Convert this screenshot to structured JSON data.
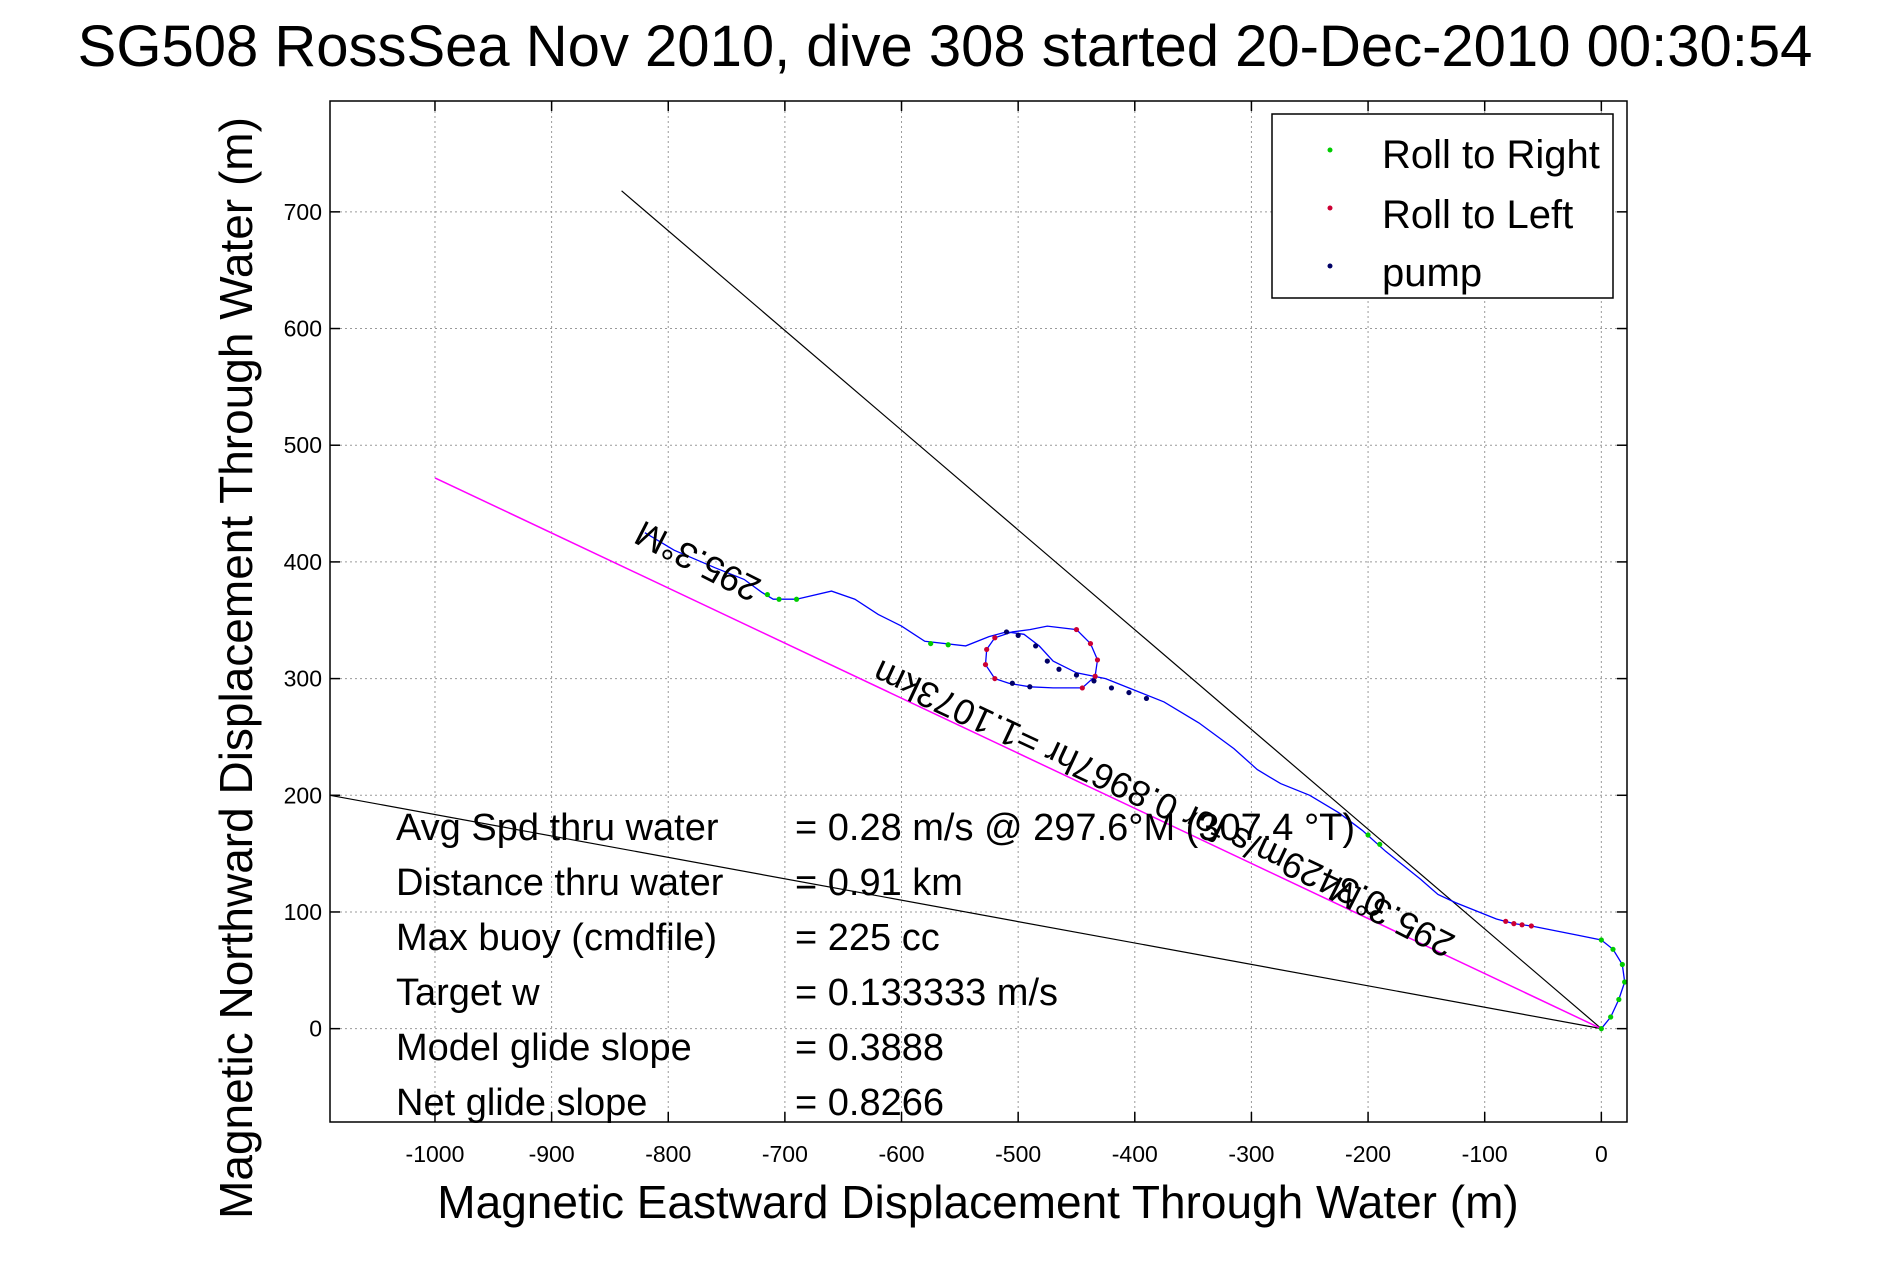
{
  "title": "SG508 RossSea Nov 2010, dive 308 started 20-Dec-2010 00:30:54",
  "chart_data": {
    "type": "scatter",
    "title": "SG508 RossSea Nov 2010, dive 308 started 20-Dec-2010 00:30:54",
    "xlabel": "Magnetic Eastward Displacement Through Water (m)",
    "ylabel": "Magnetic Northward Displacement Through Water (m)",
    "xlim": [
      -1090,
      22
    ],
    "ylim": [
      -80,
      795
    ],
    "grid": true,
    "legend_position": "top-right",
    "xticks": [
      -1000,
      -900,
      -800,
      -700,
      -600,
      -500,
      -400,
      -300,
      -200,
      -100,
      0
    ],
    "yticks": [
      0,
      100,
      200,
      300,
      400,
      500,
      600,
      700
    ],
    "xtick_labels": [
      "-1000",
      "-900",
      "-800",
      "-700",
      "-600",
      "-500",
      "-400",
      "-300",
      "-200",
      "-100",
      "0"
    ],
    "ytick_labels": [
      "0",
      "100",
      "200",
      "300",
      "400",
      "500",
      "600",
      "700"
    ],
    "colors": {
      "track": "#0000ff",
      "roll_right": "#00cc00",
      "roll_left": "#cc0033",
      "pump": "#000066",
      "course_line": "#ff00ff",
      "heading_line": "#000000"
    },
    "track": [
      [
        0,
        0
      ],
      [
        8,
        10
      ],
      [
        15,
        25
      ],
      [
        20,
        40
      ],
      [
        18,
        55
      ],
      [
        10,
        68
      ],
      [
        0,
        76
      ],
      [
        -20,
        80
      ],
      [
        -40,
        84
      ],
      [
        -60,
        88
      ],
      [
        -75,
        90
      ],
      [
        -90,
        94
      ],
      [
        -110,
        102
      ],
      [
        -125,
        108
      ],
      [
        -140,
        115
      ],
      [
        -155,
        128
      ],
      [
        -170,
        140
      ],
      [
        -185,
        152
      ],
      [
        -205,
        170
      ],
      [
        -225,
        185
      ],
      [
        -250,
        200
      ],
      [
        -275,
        210
      ],
      [
        -295,
        222
      ],
      [
        -315,
        240
      ],
      [
        -345,
        262
      ],
      [
        -375,
        280
      ],
      [
        -395,
        288
      ],
      [
        -425,
        300
      ],
      [
        -450,
        305
      ],
      [
        -470,
        315
      ],
      [
        -482,
        328
      ],
      [
        -495,
        338
      ],
      [
        -510,
        340
      ],
      [
        -525,
        336
      ],
      [
        -545,
        328
      ],
      [
        -580,
        332
      ],
      [
        -600,
        345
      ],
      [
        -620,
        355
      ],
      [
        -640,
        368
      ],
      [
        -660,
        375
      ],
      [
        -690,
        368
      ],
      [
        -710,
        368
      ],
      [
        -720,
        374
      ],
      [
        -735,
        385
      ],
      [
        -760,
        395
      ],
      [
        -795,
        410
      ],
      [
        -820,
        425
      ]
    ],
    "loop": [
      [
        -490,
        342
      ],
      [
        -475,
        345
      ],
      [
        -450,
        342
      ],
      [
        -438,
        330
      ],
      [
        -432,
        316
      ],
      [
        -434,
        302
      ],
      [
        -445,
        292
      ],
      [
        -470,
        292
      ],
      [
        -490,
        293
      ],
      [
        -508,
        296
      ],
      [
        -520,
        300
      ],
      [
        -528,
        312
      ],
      [
        -527,
        325
      ],
      [
        -520,
        335
      ],
      [
        -505,
        340
      ],
      [
        -490,
        342
      ]
    ],
    "series": [
      {
        "name": "Roll to Right",
        "color": "#00cc00",
        "points": [
          [
            0,
            0
          ],
          [
            8,
            10
          ],
          [
            15,
            25
          ],
          [
            20,
            40
          ],
          [
            18,
            55
          ],
          [
            10,
            68
          ],
          [
            0,
            76
          ],
          [
            -690,
            368
          ],
          [
            -705,
            368
          ],
          [
            -715,
            372
          ],
          [
            -560,
            329
          ],
          [
            -575,
            330
          ],
          [
            -190,
            158
          ],
          [
            -200,
            166
          ]
        ]
      },
      {
        "name": "Roll to Left",
        "color": "#cc0033",
        "points": [
          [
            -60,
            88
          ],
          [
            -68,
            89
          ],
          [
            -75,
            90
          ],
          [
            -82,
            92
          ],
          [
            -450,
            342
          ],
          [
            -438,
            330
          ],
          [
            -432,
            316
          ],
          [
            -434,
            302
          ],
          [
            -445,
            292
          ],
          [
            -520,
            300
          ],
          [
            -528,
            312
          ],
          [
            -527,
            325
          ],
          [
            -520,
            335
          ]
        ]
      },
      {
        "name": "pump",
        "color": "#000066",
        "points": [
          [
            -485,
            328
          ],
          [
            -475,
            315
          ],
          [
            -465,
            308
          ],
          [
            -450,
            303
          ],
          [
            -435,
            298
          ],
          [
            -420,
            292
          ],
          [
            -405,
            288
          ],
          [
            -390,
            283
          ],
          [
            -510,
            340
          ],
          [
            -500,
            337
          ],
          [
            -490,
            293
          ],
          [
            -505,
            296
          ]
        ]
      }
    ],
    "course_line": {
      "from": [
        -1000,
        472
      ],
      "to": [
        0,
        0
      ]
    },
    "heading_lines": [
      {
        "from": [
          -840,
          718
        ],
        "to": [
          0,
          0
        ]
      },
      {
        "from": [
          -1090,
          200
        ],
        "to": [
          0,
          0
        ]
      }
    ],
    "annotations": [
      {
        "text": "295.3°M",
        "x": -770,
        "y": 410,
        "rotation": 207
      },
      {
        "text": "295.3°M",
        "x": -175,
        "y": 105,
        "rotation": 207
      },
      {
        "text": "0.3429m/s for 0.8967hr =1.1073km",
        "x": -400,
        "y": 215,
        "rotation": 205
      }
    ]
  },
  "legend": [
    {
      "label": "Roll to Right",
      "color": "#00cc00"
    },
    {
      "label": "Roll to Left",
      "color": "#cc0033"
    },
    {
      "label": "pump",
      "color": "#000066"
    }
  ],
  "stats": [
    {
      "label": "Avg Spd thru water",
      "value": "=  0.28 m/s @ 297.6°M (307.4 °T)"
    },
    {
      "label": "Distance thru water",
      "value": "=  0.91 km"
    },
    {
      "label": "Max buoy (cmdfile)",
      "value": "= 225 cc"
    },
    {
      "label": "Target w",
      "value": "= 0.133333 m/s"
    },
    {
      "label": "Model glide slope",
      "value": "= 0.3888"
    },
    {
      "label": "Net glide slope",
      "value": "= 0.8266"
    }
  ]
}
